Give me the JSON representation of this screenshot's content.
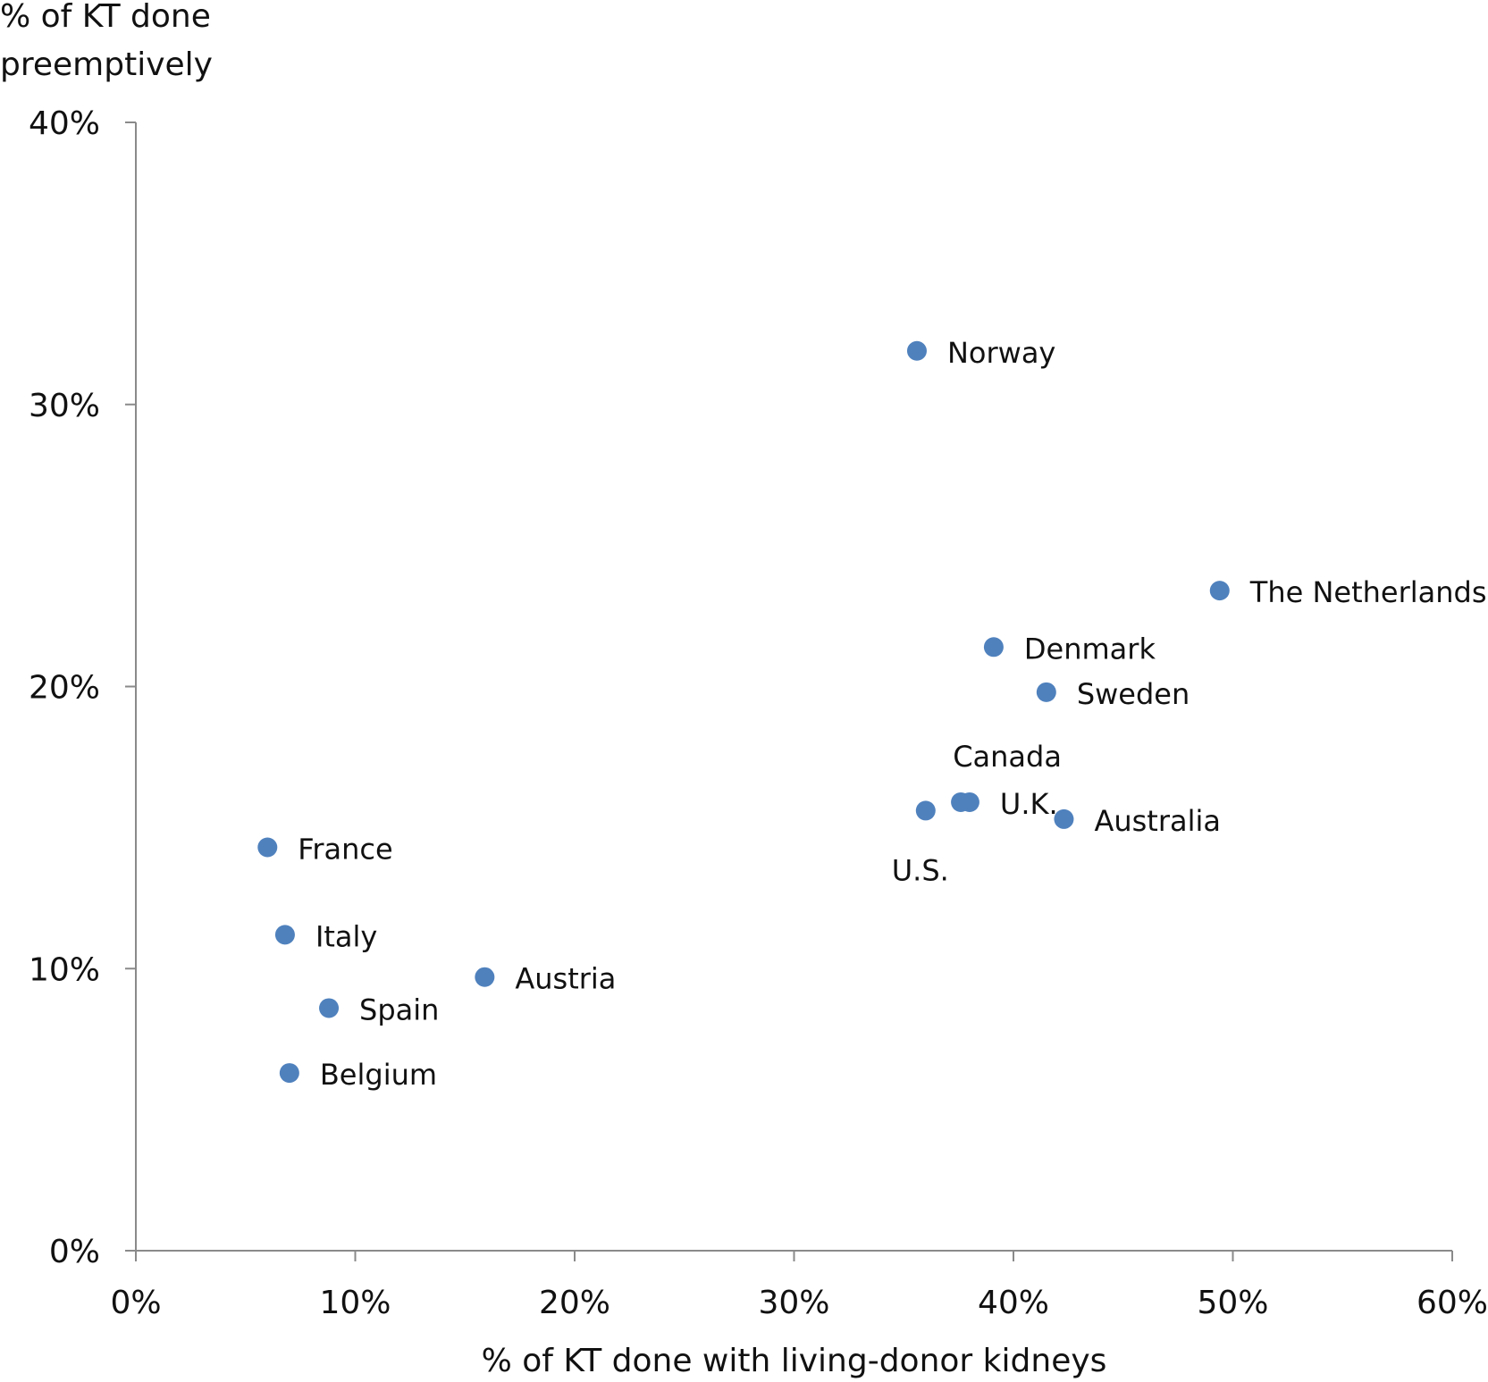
{
  "chart_data": {
    "type": "scatter",
    "title": "",
    "xlabel": "% of KT done with living-donor kidneys",
    "ylabel_lines": [
      "% of KT done",
      "preemptively"
    ],
    "xlim": [
      0,
      60
    ],
    "ylim": [
      0,
      40
    ],
    "xticks": [
      {
        "value": 0,
        "label": "0%"
      },
      {
        "value": 10,
        "label": "10%"
      },
      {
        "value": 20,
        "label": "20%"
      },
      {
        "value": 30,
        "label": "30%"
      },
      {
        "value": 40,
        "label": "40%"
      },
      {
        "value": 50,
        "label": "50%"
      },
      {
        "value": 60,
        "label": "60%"
      }
    ],
    "yticks": [
      {
        "value": 0,
        "label": "0%"
      },
      {
        "value": 10,
        "label": "10%"
      },
      {
        "value": 20,
        "label": "20%"
      },
      {
        "value": 30,
        "label": "30%"
      },
      {
        "value": 40,
        "label": "40%"
      }
    ],
    "grid": false,
    "marker_color": "#4f81bd",
    "points": [
      {
        "label": "Norway",
        "x": 35.6,
        "y": 31.9,
        "label_pos": "right"
      },
      {
        "label": "The Netherlands",
        "x": 49.4,
        "y": 23.4,
        "label_pos": "right"
      },
      {
        "label": "Denmark",
        "x": 39.1,
        "y": 21.4,
        "label_pos": "right"
      },
      {
        "label": "Sweden",
        "x": 41.5,
        "y": 19.8,
        "label_pos": "right"
      },
      {
        "label": "Canada",
        "x": 37.6,
        "y": 15.9,
        "label_pos": "above"
      },
      {
        "label": "U.K.",
        "x": 38.0,
        "y": 15.9,
        "label_pos": "right"
      },
      {
        "label": "U.S.",
        "x": 36.0,
        "y": 15.6,
        "label_pos": "below"
      },
      {
        "label": "Australia",
        "x": 42.3,
        "y": 15.3,
        "label_pos": "right"
      },
      {
        "label": "France",
        "x": 6.0,
        "y": 14.3,
        "label_pos": "right"
      },
      {
        "label": "Italy",
        "x": 6.8,
        "y": 11.2,
        "label_pos": "right"
      },
      {
        "label": "Austria",
        "x": 15.9,
        "y": 9.7,
        "label_pos": "right"
      },
      {
        "label": "Spain",
        "x": 8.8,
        "y": 8.6,
        "label_pos": "right"
      },
      {
        "label": "Belgium",
        "x": 7.0,
        "y": 6.3,
        "label_pos": "right"
      }
    ]
  }
}
